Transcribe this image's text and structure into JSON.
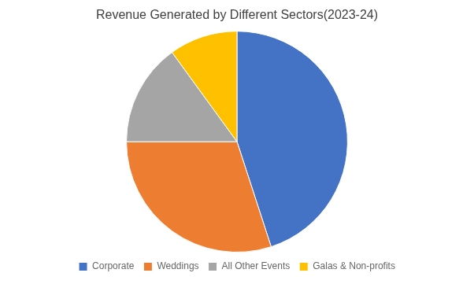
{
  "chart_data": {
    "type": "pie",
    "title": "Revenue Generated by Different Sectors(2023-24)",
    "categories": [
      "Corporate",
      "Weddings",
      "All Other Events",
      "Galas & Non-profits"
    ],
    "values": [
      45,
      30,
      15,
      10
    ],
    "colors": [
      "#4472C4",
      "#ED7D31",
      "#A5A5A5",
      "#FFC000"
    ],
    "legend": "bottom"
  }
}
